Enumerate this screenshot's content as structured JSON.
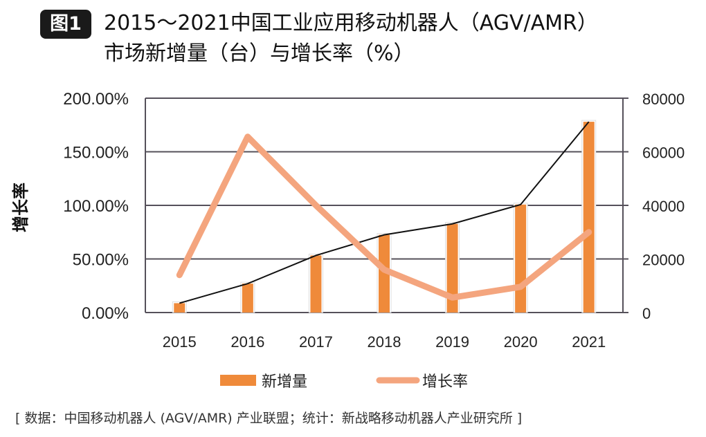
{
  "badge": "图1",
  "chart_data": {
    "type": "bar+line",
    "title_line1": "2015～2021中国工业应用移动机器人（AGV/AMR）",
    "title_line2": "市场新增量（台）与增长率（%）",
    "ylabel": "增长率",
    "categories": [
      "2015",
      "2016",
      "2017",
      "2018",
      "2019",
      "2020",
      "2021"
    ],
    "y_left_ticks": [
      "0.00%",
      "50.00%",
      "100.00%",
      "150.00%",
      "200.00%"
    ],
    "y_left_range": [
      0,
      200
    ],
    "y_right_ticks": [
      "0",
      "20000",
      "40000",
      "60000",
      "80000"
    ],
    "y_right_range": [
      0,
      80000
    ],
    "grid": true,
    "legend_placement": "bottom",
    "series": [
      {
        "name": "新增量",
        "type": "bar",
        "axis": "right",
        "color": "#ef8a3a",
        "values": [
          3500,
          10800,
          21300,
          29000,
          33100,
          40300,
          71200
        ]
      },
      {
        "name": "增长率",
        "type": "line",
        "axis": "left",
        "color": "#f4a57e",
        "values": [
          35,
          164,
          100,
          40,
          14,
          24,
          75
        ]
      }
    ]
  },
  "footer": "[ 数据：中国移动机器人 (AGV/AMR) 产业联盟；统计：新战略移动机器人产业研究所 ]"
}
